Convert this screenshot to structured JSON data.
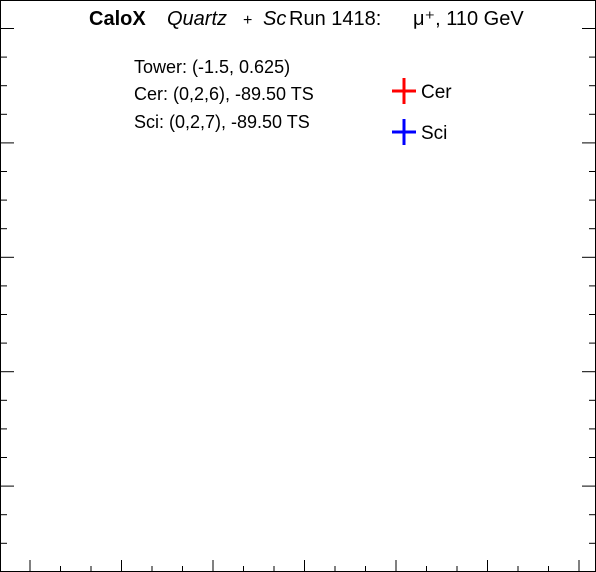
{
  "header": {
    "experiment": "CaloX",
    "detector_a": "Quartz",
    "plus": "+",
    "detector_b": "Sc",
    "run": "Run 1418:",
    "particle": "μ⁺, 110 GeV"
  },
  "info": {
    "tower": "Tower: (-1.5, 0.625)",
    "cer": "Cer: (0,2,6), -89.50 TS",
    "sci": "Sci: (0,2,7), -89.50 TS"
  },
  "chart_data": {
    "type": "scatter",
    "title": "",
    "xlabel": "",
    "ylabel": "",
    "grid": false,
    "legend_position": "top-right",
    "series": [
      {
        "name": "Cer",
        "color": "#ff0000",
        "points": []
      },
      {
        "name": "Sci",
        "color": "#0000ff",
        "points": []
      }
    ]
  }
}
